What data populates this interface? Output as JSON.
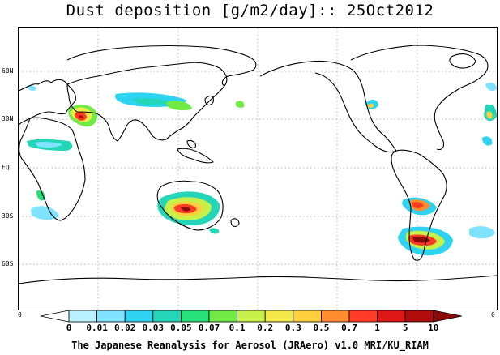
{
  "title": "Dust deposition [g/m2/day]:: 25Oct2012",
  "footer": "The Japanese Reanalysis for Aerosol (JRAero) v1.0 MRI/KU_RIAM",
  "lat_labels": [
    "60N",
    "30N",
    "EQ",
    "30S",
    "60S"
  ],
  "edge_labels": {
    "left": "0",
    "right": "0"
  },
  "colorbar": {
    "labels": [
      "0",
      "0.01",
      "0.02",
      "0.03",
      "0.05",
      "0.07",
      "0.1",
      "0.2",
      "0.3",
      "0.5",
      "0.7",
      "1",
      "5",
      "10"
    ],
    "colors": [
      "#ffffff",
      "#b9f2ff",
      "#7fe3ff",
      "#2fd3f2",
      "#24d6b8",
      "#26e07a",
      "#72ea45",
      "#c8f04a",
      "#f2e948",
      "#ffcf3d",
      "#ff8c2d",
      "#ff3b26",
      "#dd1616",
      "#b00c0c",
      "#8b0a0a"
    ]
  }
}
